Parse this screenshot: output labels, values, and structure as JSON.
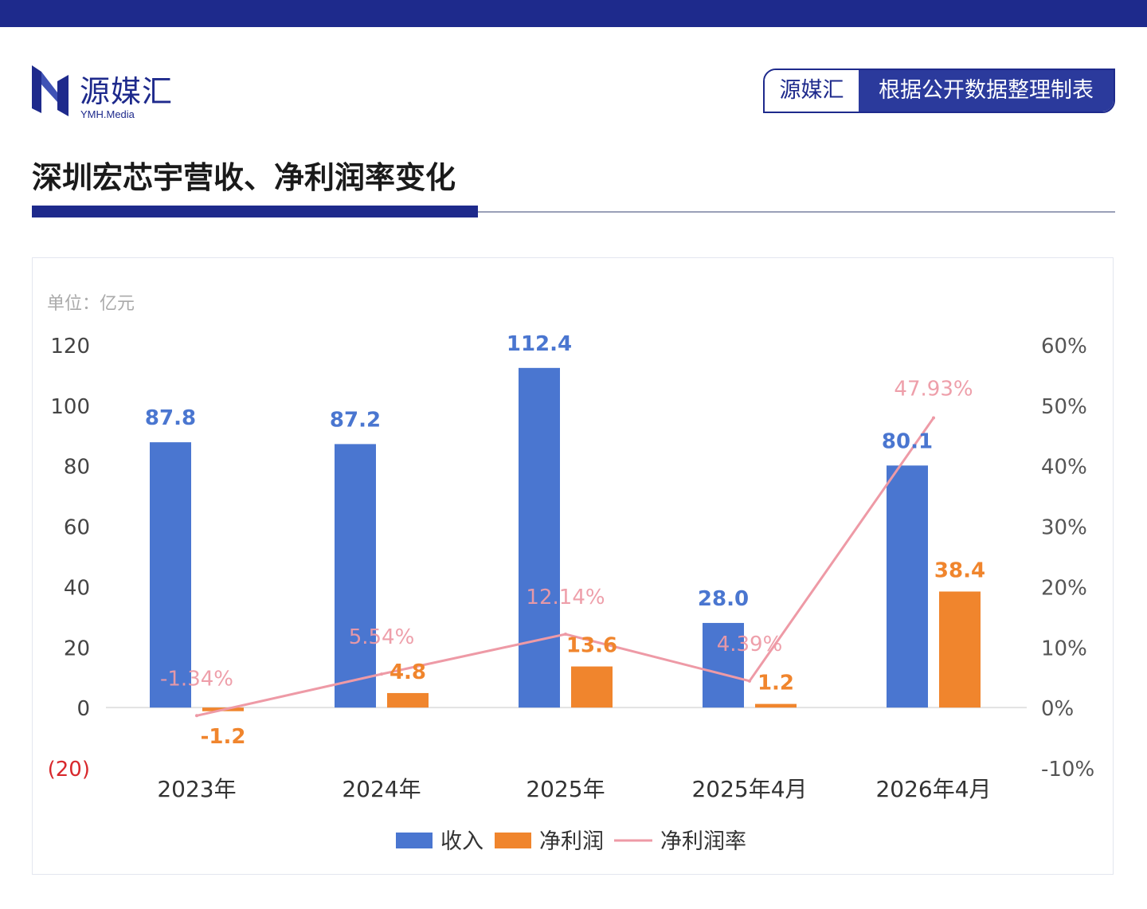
{
  "header": {
    "logo_text": "源媒汇",
    "logo_sub": "YMH.Media",
    "badge_left": "源媒汇",
    "badge_right": "根据公开数据整理制表",
    "title": "深圳宏芯宇营收、净利润率变化"
  },
  "colors": {
    "brand": "#1e2a8c",
    "revenue": "#4a76d0",
    "profit": "#f0852d",
    "margin": "#ee9aa6",
    "negative_tick": "#d8282c"
  },
  "chart_data": {
    "type": "bar",
    "unit_label": "单位：亿元",
    "categories": [
      "2023年",
      "2024年",
      "2025年",
      "2025年4月",
      "2026年4月"
    ],
    "series": [
      {
        "name": "收入",
        "type": "bar",
        "axis": "left",
        "values": [
          87.8,
          87.2,
          112.4,
          28.0,
          80.1
        ],
        "labels": [
          "87.8",
          "87.2",
          "112.4",
          "28.0",
          "80.1"
        ]
      },
      {
        "name": "净利润",
        "type": "bar",
        "axis": "left",
        "values": [
          -1.2,
          4.8,
          13.6,
          1.2,
          38.4
        ],
        "labels": [
          "-1.2",
          "4.8",
          "13.6",
          "1.2",
          "38.4"
        ]
      },
      {
        "name": "净利润率",
        "type": "line",
        "axis": "right",
        "values": [
          -1.34,
          5.54,
          12.14,
          4.39,
          47.93
        ],
        "labels": [
          "-1.34%",
          "5.54%",
          "12.14%",
          "4.39%",
          "47.93%"
        ]
      }
    ],
    "y_left": {
      "min": -20,
      "max": 120,
      "ticks": [
        "(20)",
        "0",
        "20",
        "40",
        "60",
        "80",
        "100",
        "120"
      ]
    },
    "y_right": {
      "min": -10,
      "max": 60,
      "ticks": [
        "-10%",
        "0%",
        "10%",
        "20%",
        "30%",
        "40%",
        "50%",
        "60%"
      ]
    },
    "legend": {
      "position": "bottom-center"
    },
    "grid": false
  }
}
